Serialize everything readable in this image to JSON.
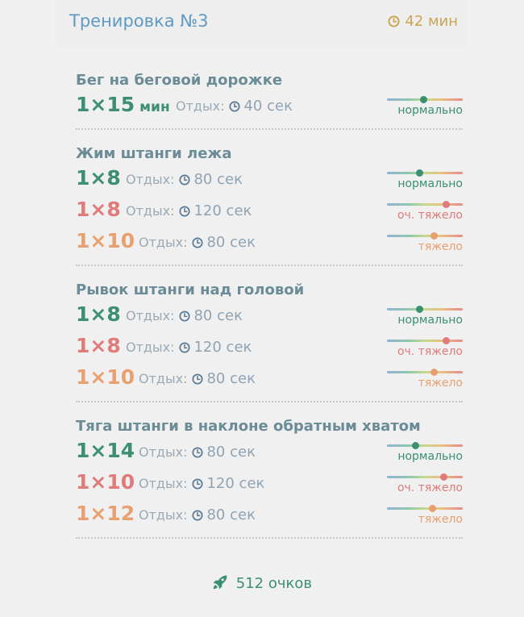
{
  "header": {
    "title": "Тренировка №3",
    "duration": "42 мин"
  },
  "rest_label": "Отдых:",
  "colors": {
    "normal": "#3c8f70",
    "very_hard": "#e07b7b",
    "hard": "#e8a070"
  },
  "exercises": [
    {
      "title": "Бег на беговой дорожке",
      "sets": [
        {
          "reps": "1×15",
          "unit": "мин",
          "rest": "40 сек",
          "level": "нормально",
          "intensity": 0.48,
          "tone": "green"
        }
      ]
    },
    {
      "title": "Жим штанги лежа",
      "sets": [
        {
          "reps": "1×8",
          "unit": "",
          "rest": "80 сек",
          "level": "нормально",
          "intensity": 0.43,
          "tone": "green"
        },
        {
          "reps": "1×8",
          "unit": "",
          "rest": "120 сек",
          "level": "оч. тяжело",
          "intensity": 0.78,
          "tone": "red"
        },
        {
          "reps": "1×10",
          "unit": "",
          "rest": "80 сек",
          "level": "тяжело",
          "intensity": 0.62,
          "tone": "orange"
        }
      ]
    },
    {
      "title": "Рывок штанги над головой",
      "sets": [
        {
          "reps": "1×8",
          "unit": "",
          "rest": "80 сек",
          "level": "нормально",
          "intensity": 0.43,
          "tone": "green"
        },
        {
          "reps": "1×8",
          "unit": "",
          "rest": "120 сек",
          "level": "оч. тяжело",
          "intensity": 0.78,
          "tone": "red"
        },
        {
          "reps": "1×10",
          "unit": "",
          "rest": "80 сек",
          "level": "тяжело",
          "intensity": 0.62,
          "tone": "orange"
        }
      ]
    },
    {
      "title": "Тяга штанги в наклоне обратным хватом",
      "sets": [
        {
          "reps": "1×14",
          "unit": "",
          "rest": "80 сек",
          "level": "нормально",
          "intensity": 0.37,
          "tone": "green"
        },
        {
          "reps": "1×10",
          "unit": "",
          "rest": "120 сек",
          "level": "оч. тяжело",
          "intensity": 0.74,
          "tone": "red"
        },
        {
          "reps": "1×12",
          "unit": "",
          "rest": "80 сек",
          "level": "тяжело",
          "intensity": 0.59,
          "tone": "orange"
        }
      ]
    }
  ],
  "footer": {
    "points": "512 очков",
    "icon": "rocket-icon"
  }
}
